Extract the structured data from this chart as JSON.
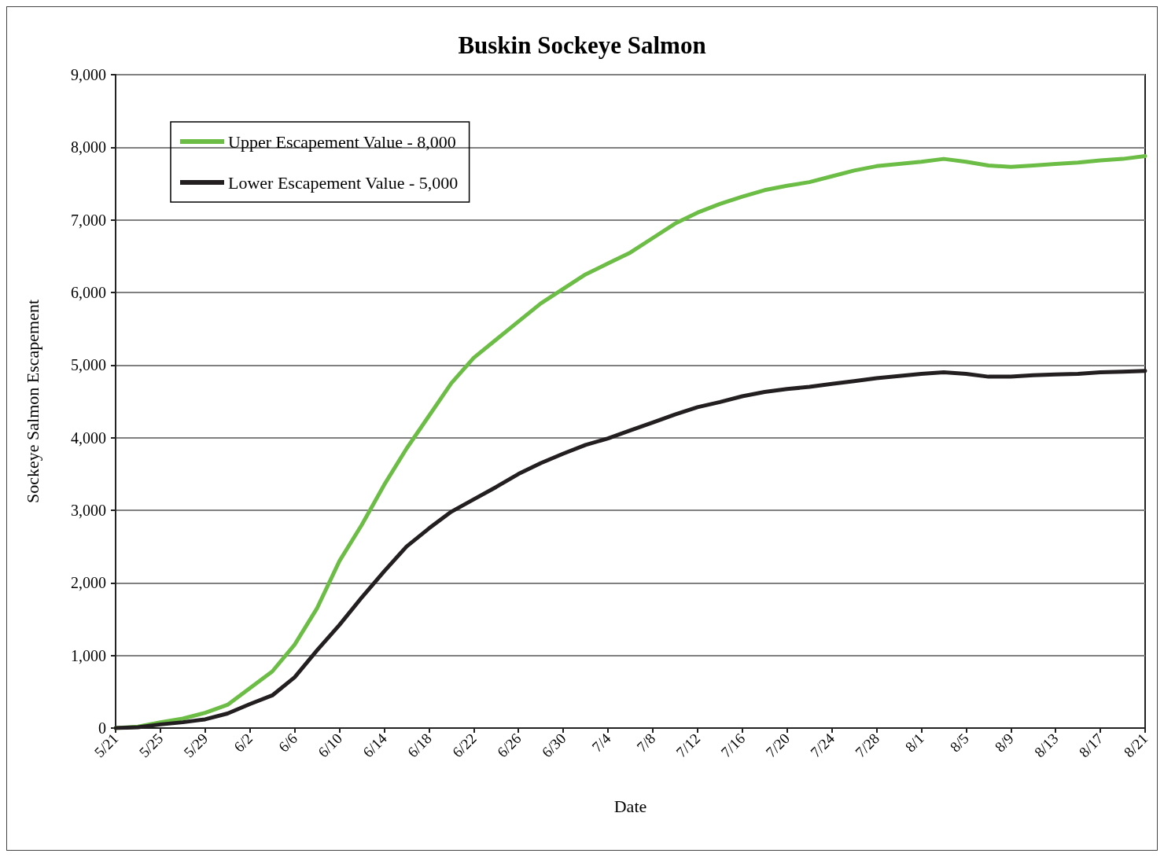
{
  "chart_data": {
    "type": "line",
    "title": "Buskin Sockeye Salmon",
    "xlabel": "Date",
    "ylabel": "Sockeye Salmon Escapement",
    "x": [
      "--05-21",
      "--05-23",
      "--05-25",
      "--05-27",
      "--05-29",
      "--05-31",
      "--06-02",
      "--06-04",
      "--06-06",
      "--06-08",
      "--06-10",
      "--06-12",
      "--06-14",
      "--06-16",
      "--06-18",
      "--06-20",
      "--06-22",
      "--06-24",
      "--06-26",
      "--06-28",
      "--06-30",
      "--07-02",
      "--07-04",
      "--07-06",
      "--07-08",
      "--07-10",
      "--07-12",
      "--07-14",
      "--07-16",
      "--07-18",
      "--07-20",
      "--07-22",
      "--07-24",
      "--07-26",
      "--07-28",
      "--07-30",
      "--08-01",
      "--08-03",
      "--08-05",
      "--08-07",
      "--08-09",
      "--08-11",
      "--08-13",
      "--08-15",
      "--08-17",
      "--08-19",
      "--08-21"
    ],
    "series": [
      {
        "name": "Upper Escapement Value - 8,000",
        "color": "#6cbd45",
        "values": [
          0,
          20,
          80,
          130,
          210,
          320,
          550,
          780,
          1150,
          1650,
          2300,
          2800,
          3350,
          3850,
          4300,
          4750,
          5100,
          5350,
          5600,
          5850,
          6050,
          6250,
          6400,
          6550,
          6750,
          6950,
          7100,
          7220,
          7320,
          7410,
          7470,
          7520,
          7600,
          7680,
          7740,
          7770,
          7800,
          7840,
          7800,
          7750,
          7730,
          7750,
          7770,
          7790,
          7820,
          7840,
          7880
        ]
      },
      {
        "name": "Lower Escapement Value - 5,000",
        "color": "#231f20",
        "values": [
          0,
          10,
          50,
          80,
          120,
          200,
          330,
          450,
          700,
          1070,
          1420,
          1800,
          2160,
          2500,
          2750,
          2980,
          3150,
          3320,
          3500,
          3650,
          3780,
          3900,
          3990,
          4100,
          4210,
          4320,
          4420,
          4490,
          4570,
          4630,
          4670,
          4700,
          4740,
          4780,
          4820,
          4850,
          4880,
          4900,
          4880,
          4840,
          4840,
          4860,
          4870,
          4880,
          4900,
          4910,
          4920
        ]
      }
    ],
    "xlim": [
      "--05-21",
      "--08-21"
    ],
    "xticks": [
      {
        "value": "--05-21",
        "label": "5/21"
      },
      {
        "value": "--05-25",
        "label": "5/25"
      },
      {
        "value": "--05-29",
        "label": "5/29"
      },
      {
        "value": "--06-02",
        "label": "6/2"
      },
      {
        "value": "--06-06",
        "label": "6/6"
      },
      {
        "value": "--06-10",
        "label": "6/10"
      },
      {
        "value": "--06-14",
        "label": "6/14"
      },
      {
        "value": "--06-18",
        "label": "6/18"
      },
      {
        "value": "--06-22",
        "label": "6/22"
      },
      {
        "value": "--06-26",
        "label": "6/26"
      },
      {
        "value": "--06-30",
        "label": "6/30"
      },
      {
        "value": "--07-04",
        "label": "7/4"
      },
      {
        "value": "--07-08",
        "label": "7/8"
      },
      {
        "value": "--07-12",
        "label": "7/12"
      },
      {
        "value": "--07-16",
        "label": "7/16"
      },
      {
        "value": "--07-20",
        "label": "7/20"
      },
      {
        "value": "--07-24",
        "label": "7/24"
      },
      {
        "value": "--07-28",
        "label": "7/28"
      },
      {
        "value": "--08-01",
        "label": "8/1"
      },
      {
        "value": "--08-05",
        "label": "8/5"
      },
      {
        "value": "--08-09",
        "label": "8/9"
      },
      {
        "value": "--08-13",
        "label": "8/13"
      },
      {
        "value": "--08-17",
        "label": "8/17"
      },
      {
        "value": "--08-21",
        "label": "8/21"
      }
    ],
    "ylim": [
      0,
      9000
    ],
    "yticks": [
      {
        "value": 0,
        "label": "0"
      },
      {
        "value": 1000,
        "label": "1,000"
      },
      {
        "value": 2000,
        "label": "2,000"
      },
      {
        "value": 3000,
        "label": "3,000"
      },
      {
        "value": 4000,
        "label": "4,000"
      },
      {
        "value": 5000,
        "label": "5,000"
      },
      {
        "value": 6000,
        "label": "6,000"
      },
      {
        "value": 7000,
        "label": "7,000"
      },
      {
        "value": 8000,
        "label": "8,000"
      },
      {
        "value": 9000,
        "label": "9,000"
      }
    ],
    "grid": "y",
    "legend": "top left",
    "marker": "none",
    "line_style": "solid"
  }
}
